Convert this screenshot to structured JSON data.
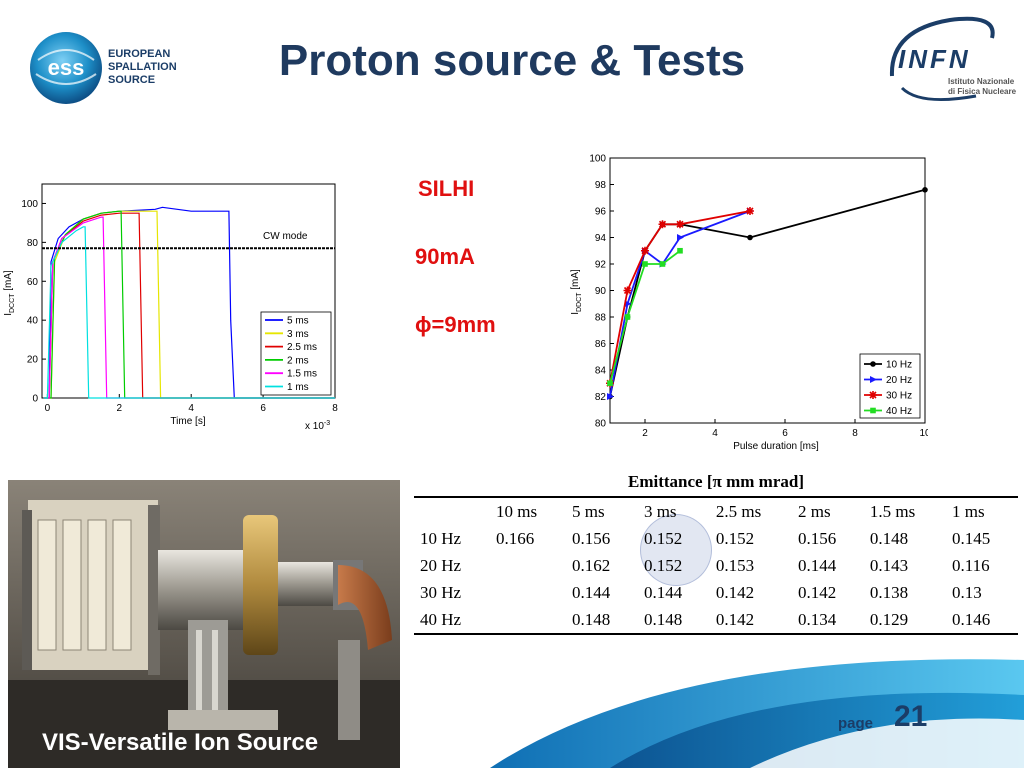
{
  "header": {
    "title": "Proton source & Tests",
    "ess_logo": {
      "monogram": "ess",
      "lines": [
        "EUROPEAN",
        "SPALLATION",
        "SOURCE"
      ]
    },
    "infn_logo": {
      "mark": "INFN",
      "subtitle_lines": [
        "Istituto Nazionale",
        "di Fisica Nucleare"
      ]
    }
  },
  "notes": {
    "source": "SILHI",
    "current": "90mA",
    "diameter": "ϕ=9mm"
  },
  "chart_data": [
    {
      "type": "line",
      "xlabel": "Time [s]",
      "x_scale_label": "x 10",
      "x_scale_exp": "-3",
      "ylabel": "I",
      "ylabel_sub": "DCCT",
      "ylabel_unit": " [mA]",
      "xlim": [
        -0.15,
        8
      ],
      "ylim": [
        0,
        110
      ],
      "xticks": [
        0,
        2,
        4,
        6,
        8
      ],
      "yticks": [
        0,
        20,
        40,
        60,
        80,
        100
      ],
      "annotation": "CW mode",
      "legend_placement": "bottom-right",
      "cw_level": 77,
      "series": [
        {
          "name": "5 ms",
          "color": "#0000ff",
          "x": [
            -0.1,
            0.05,
            0.1,
            0.3,
            0.6,
            1.0,
            1.5,
            2.0,
            3.0,
            3.2,
            4.0,
            5.05,
            5.1,
            5.2,
            8.0
          ],
          "y": [
            0,
            0,
            70,
            82,
            88,
            92,
            95,
            96,
            97,
            98,
            96,
            96,
            40,
            0,
            0
          ]
        },
        {
          "name": "3 ms",
          "color": "#e6e600",
          "x": [
            -0.1,
            0.1,
            0.2,
            0.5,
            1.0,
            1.5,
            2.0,
            2.5,
            3.0,
            3.05,
            3.15,
            8.0
          ],
          "y": [
            0,
            0,
            70,
            84,
            92,
            95,
            96,
            96,
            96,
            96,
            0,
            0
          ]
        },
        {
          "name": "2.5 ms",
          "color": "#e00000",
          "x": [
            -0.1,
            0.05,
            0.15,
            0.4,
            1.0,
            1.5,
            2.0,
            2.5,
            2.55,
            2.65,
            8.0
          ],
          "y": [
            0,
            0,
            70,
            82,
            91,
            94,
            95,
            95,
            95,
            0,
            0
          ]
        },
        {
          "name": "2 ms",
          "color": "#00cc00",
          "x": [
            -0.1,
            0.1,
            0.2,
            0.5,
            1.0,
            1.5,
            2.0,
            2.05,
            2.15,
            8.0
          ],
          "y": [
            0,
            0,
            72,
            84,
            92,
            95,
            96,
            96,
            0,
            0
          ]
        },
        {
          "name": "1.5 ms",
          "color": "#ff00ff",
          "x": [
            -0.1,
            0.05,
            0.15,
            0.4,
            1.0,
            1.5,
            1.55,
            1.65,
            8.0
          ],
          "y": [
            0,
            0,
            70,
            82,
            90,
            93,
            93,
            0,
            0
          ]
        },
        {
          "name": "1 ms",
          "color": "#00e0e0",
          "x": [
            -0.1,
            0.0,
            0.1,
            0.4,
            0.8,
            1.0,
            1.05,
            1.15,
            8.0
          ],
          "y": [
            0,
            0,
            68,
            80,
            86,
            88,
            88,
            0,
            0
          ]
        }
      ]
    },
    {
      "type": "line",
      "xlabel": "Pulse duration [ms]",
      "ylabel": "I",
      "ylabel_sub": "DDCT",
      "ylabel_unit": " [mA]",
      "xlim": [
        1,
        10
      ],
      "ylim": [
        80,
        100
      ],
      "xticks": [
        2,
        4,
        6,
        8,
        10
      ],
      "yticks": [
        80,
        82,
        84,
        86,
        88,
        90,
        92,
        94,
        96,
        98,
        100
      ],
      "legend_placement": "bottom-right",
      "series": [
        {
          "name": "10 Hz",
          "color": "#000000",
          "marker": "circle",
          "x": [
            1,
            1.5,
            2,
            2.5,
            3,
            5,
            10
          ],
          "y": [
            82,
            88,
            93,
            95,
            95,
            94,
            97.6
          ]
        },
        {
          "name": "20 Hz",
          "color": "#1a1aff",
          "marker": "triangle",
          "x": [
            1,
            1.5,
            2,
            2.5,
            3,
            5
          ],
          "y": [
            82,
            89,
            93,
            92,
            94,
            96
          ]
        },
        {
          "name": "30 Hz",
          "color": "#e00000",
          "marker": "star",
          "x": [
            1,
            1.5,
            2,
            2.5,
            3,
            5
          ],
          "y": [
            83,
            90,
            93,
            95,
            95,
            96
          ]
        },
        {
          "name": "40 Hz",
          "color": "#22dd22",
          "marker": "square",
          "x": [
            1,
            1.5,
            2,
            2.5,
            3
          ],
          "y": [
            83,
            88,
            92,
            92,
            93
          ]
        }
      ]
    }
  ],
  "emittance": {
    "caption_prefix": "Emittance [",
    "caption_symbol": "π",
    "caption_suffix": " mm mrad]",
    "columns": [
      "",
      "10 ms",
      "5 ms",
      "3 ms",
      "2.5 ms",
      "2 ms",
      "1.5 ms",
      "1 ms"
    ],
    "rows": [
      [
        "10 Hz",
        "0.166",
        "0.156",
        "0.152",
        "0.152",
        "0.156",
        "0.148",
        "0.145"
      ],
      [
        "20 Hz",
        "",
        "0.162",
        "0.152",
        "0.153",
        "0.144",
        "0.143",
        "0.116"
      ],
      [
        "30 Hz",
        "",
        "0.144",
        "0.144",
        "0.142",
        "0.142",
        "0.138",
        "0.13"
      ],
      [
        "40 Hz",
        "",
        "0.148",
        "0.148",
        "0.142",
        "0.134",
        "0.129",
        "0.146"
      ]
    ]
  },
  "photo": {
    "caption": "VIS-Versatile Ion Source"
  },
  "footer": {
    "page_label": "page",
    "page_number": "21"
  },
  "colors": {
    "title": "#1f3a5f",
    "notes": "#e01010",
    "brand_blue": "#1b3d67"
  }
}
